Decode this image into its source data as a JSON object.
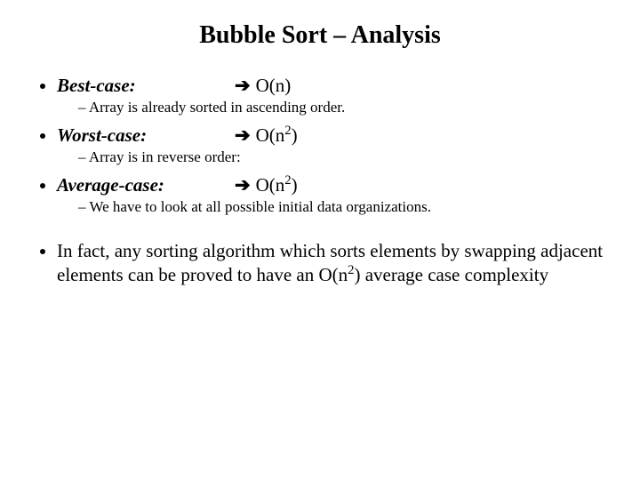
{
  "title": "Bubble Sort – Analysis",
  "cases": {
    "best": {
      "label": "Best-case:",
      "complexity": "O(n)",
      "sup": "",
      "note": "Array is already sorted in ascending order."
    },
    "worst": {
      "label": "Worst-case:",
      "complexity": "O(n",
      "sup": "2",
      "tail": ")",
      "note": "Array is in reverse order:"
    },
    "avg": {
      "label": "Average-case:",
      "complexity": "O(n",
      "sup": "2",
      "tail": ")",
      "note": "We have to look at all possible initial data organizations."
    }
  },
  "arrow": "➔",
  "conclusion": {
    "pre": "In fact, any sorting algorithm which sorts elements by swapping adjacent elements can be proved to have an O(n",
    "sup": "2",
    "post": ") average case complexity"
  }
}
